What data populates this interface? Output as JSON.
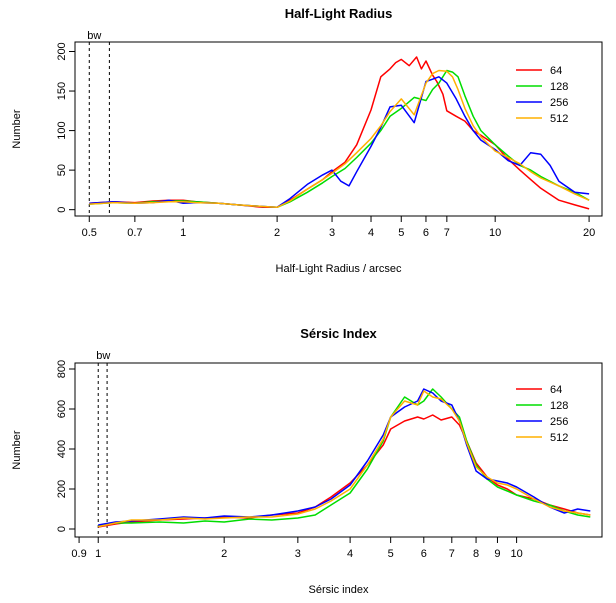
{
  "chart_data": [
    {
      "type": "line",
      "title": "Half-Light Radius",
      "xlabel": "Half-Light Radius / arcsec",
      "ylabel": "Number",
      "xscale": "log",
      "xlim": [
        0.45,
        22
      ],
      "ylim": [
        -8,
        212
      ],
      "xticks": [
        0.5,
        0.7,
        1,
        2,
        3,
        4,
        5,
        6,
        7,
        10,
        20
      ],
      "xtick_labels": [
        "0.5",
        "0.7",
        "1",
        "2",
        "3",
        "4",
        "5",
        "6",
        "7",
        "10",
        "20"
      ],
      "yticks": [
        0,
        50,
        100,
        150,
        200
      ],
      "ytick_labels": [
        "0",
        "50",
        "100",
        "150",
        "200"
      ],
      "bw_label": "bw",
      "bw_lines": [
        0.5,
        0.58
      ],
      "legend_position": "top-right",
      "legend": [
        {
          "label": "64",
          "color": "#ff0000"
        },
        {
          "label": "128",
          "color": "#00dd00"
        },
        {
          "label": "256",
          "color": "#0000ff"
        },
        {
          "label": "512",
          "color": "#ffb000"
        }
      ],
      "series": [
        {
          "name": "64",
          "color": "#ff0000",
          "x": [
            0.5,
            0.6,
            0.7,
            0.8,
            0.9,
            1.0,
            1.1,
            1.3,
            1.5,
            1.8,
            2.0,
            2.2,
            2.5,
            2.8,
            3.0,
            3.3,
            3.6,
            4.0,
            4.3,
            4.6,
            4.8,
            5.0,
            5.3,
            5.6,
            5.8,
            6.0,
            6.3,
            6.5,
            6.8,
            7.0,
            7.5,
            8.0,
            8.5,
            9.0,
            10,
            11,
            12,
            13,
            14,
            16,
            18,
            20
          ],
          "y": [
            8,
            10,
            9,
            11,
            12,
            12,
            10,
            8,
            6,
            3,
            3,
            12,
            26,
            38,
            48,
            60,
            82,
            126,
            168,
            178,
            186,
            190,
            182,
            193,
            178,
            188,
            170,
            162,
            146,
            125,
            118,
            112,
            100,
            94,
            82,
            64,
            50,
            38,
            27,
            12,
            6,
            1
          ]
        },
        {
          "name": "128",
          "color": "#00dd00",
          "x": [
            0.5,
            0.6,
            0.7,
            0.8,
            0.9,
            1.0,
            1.1,
            1.3,
            1.5,
            1.8,
            2.0,
            2.2,
            2.5,
            2.8,
            3.0,
            3.3,
            3.6,
            4.0,
            4.3,
            4.6,
            5.0,
            5.5,
            6.0,
            6.3,
            6.6,
            7.0,
            7.3,
            7.6,
            8.0,
            8.5,
            9.0,
            10,
            11,
            12,
            13,
            14,
            16,
            18,
            20
          ],
          "y": [
            7,
            9,
            8,
            10,
            11,
            11,
            10,
            8,
            6,
            4,
            3,
            10,
            22,
            34,
            42,
            52,
            66,
            84,
            100,
            118,
            128,
            142,
            138,
            152,
            160,
            176,
            174,
            168,
            144,
            118,
            100,
            82,
            68,
            56,
            50,
            42,
            30,
            22,
            12
          ]
        },
        {
          "name": "256",
          "color": "#0000ff",
          "x": [
            0.5,
            0.6,
            0.7,
            0.8,
            0.9,
            1.0,
            1.1,
            1.3,
            1.5,
            1.8,
            2.0,
            2.2,
            2.5,
            2.8,
            3.0,
            3.2,
            3.4,
            3.6,
            4.0,
            4.3,
            4.6,
            5.0,
            5.5,
            6.0,
            6.3,
            6.6,
            7.0,
            7.5,
            8.0,
            8.5,
            9.0,
            10,
            11,
            12,
            13,
            14,
            15,
            16,
            18,
            20
          ],
          "y": [
            8,
            10,
            8,
            9,
            12,
            8,
            9,
            8,
            6,
            4,
            3,
            14,
            32,
            44,
            50,
            36,
            30,
            48,
            80,
            104,
            130,
            132,
            110,
            162,
            165,
            168,
            160,
            140,
            118,
            100,
            88,
            76,
            62,
            56,
            72,
            70,
            56,
            36,
            22,
            20
          ]
        },
        {
          "name": "512",
          "color": "#ffb000",
          "x": [
            0.5,
            0.6,
            0.7,
            0.8,
            0.9,
            1.0,
            1.1,
            1.3,
            1.5,
            1.8,
            2.0,
            2.2,
            2.5,
            2.8,
            3.0,
            3.3,
            3.6,
            4.0,
            4.3,
            4.6,
            5.0,
            5.5,
            6.0,
            6.3,
            6.6,
            7.0,
            7.3,
            7.6,
            8.0,
            8.5,
            9.0,
            10,
            11,
            12,
            13,
            14,
            16,
            18,
            20
          ],
          "y": [
            7,
            9,
            8,
            9,
            10,
            10,
            9,
            8,
            6,
            4,
            3,
            11,
            26,
            38,
            46,
            58,
            72,
            90,
            106,
            124,
            140,
            120,
            160,
            172,
            176,
            175,
            168,
            152,
            128,
            106,
            92,
            74,
            66,
            58,
            48,
            40,
            30,
            20,
            12
          ]
        }
      ]
    },
    {
      "type": "line",
      "title": "Sérsic Index",
      "xlabel": "Sérsic index",
      "ylabel": "Number",
      "xscale": "log",
      "xlim": [
        0.88,
        16
      ],
      "ylim": [
        -40,
        830
      ],
      "xticks": [
        0.9,
        1,
        2,
        3,
        4,
        5,
        6,
        7,
        8,
        9,
        10
      ],
      "xtick_labels": [
        "0.9",
        "1",
        "2",
        "3",
        "4",
        "5",
        "6",
        "7",
        "8",
        "9",
        "10"
      ],
      "yticks": [
        0,
        200,
        400,
        600,
        800
      ],
      "ytick_labels": [
        "0",
        "200",
        "400",
        "600",
        "800"
      ],
      "bw_label": "bw",
      "bw_lines": [
        1.0,
        1.05
      ],
      "legend_position": "top-right",
      "legend": [
        {
          "label": "64",
          "color": "#ff0000"
        },
        {
          "label": "128",
          "color": "#00dd00"
        },
        {
          "label": "256",
          "color": "#0000ff"
        },
        {
          "label": "512",
          "color": "#ffb000"
        }
      ],
      "series": [
        {
          "name": "64",
          "color": "#ff0000",
          "x": [
            1.0,
            1.1,
            1.2,
            1.4,
            1.6,
            1.8,
            2.0,
            2.3,
            2.6,
            3.0,
            3.3,
            3.6,
            4.0,
            4.4,
            4.8,
            5.0,
            5.4,
            5.8,
            6.0,
            6.3,
            6.6,
            7.0,
            7.3,
            7.6,
            8.0,
            8.5,
            9.0,
            9.5,
            10,
            11,
            12,
            13,
            14,
            15
          ],
          "y": [
            10,
            25,
            35,
            45,
            50,
            55,
            60,
            55,
            70,
            80,
            110,
            160,
            230,
            320,
            420,
            500,
            540,
            560,
            550,
            570,
            545,
            560,
            520,
            440,
            330,
            260,
            220,
            200,
            170,
            150,
            120,
            100,
            80,
            70
          ]
        },
        {
          "name": "128",
          "color": "#00dd00",
          "x": [
            1.0,
            1.1,
            1.2,
            1.4,
            1.6,
            1.8,
            2.0,
            2.3,
            2.6,
            3.0,
            3.3,
            3.6,
            4.0,
            4.4,
            4.8,
            5.0,
            5.4,
            5.8,
            6.0,
            6.3,
            6.6,
            7.0,
            7.3,
            7.6,
            8.0,
            8.5,
            9.0,
            9.5,
            10,
            11,
            12,
            13,
            14,
            15
          ],
          "y": [
            15,
            30,
            30,
            35,
            30,
            40,
            35,
            50,
            45,
            55,
            70,
            120,
            180,
            300,
            440,
            560,
            660,
            620,
            640,
            700,
            660,
            600,
            560,
            440,
            320,
            250,
            210,
            190,
            170,
            140,
            120,
            90,
            70,
            60
          ]
        },
        {
          "name": "256",
          "color": "#0000ff",
          "x": [
            1.0,
            1.1,
            1.2,
            1.4,
            1.6,
            1.8,
            2.0,
            2.3,
            2.6,
            3.0,
            3.3,
            3.6,
            4.0,
            4.4,
            4.8,
            5.0,
            5.4,
            5.8,
            6.0,
            6.3,
            6.6,
            7.0,
            7.3,
            7.6,
            8.0,
            8.5,
            9.0,
            9.5,
            10,
            11,
            12,
            13,
            14,
            15
          ],
          "y": [
            20,
            35,
            40,
            50,
            60,
            55,
            65,
            60,
            70,
            90,
            110,
            150,
            220,
            340,
            470,
            560,
            610,
            640,
            700,
            680,
            640,
            620,
            540,
            420,
            290,
            250,
            240,
            230,
            210,
            160,
            110,
            80,
            100,
            90
          ]
        },
        {
          "name": "512",
          "color": "#ffb000",
          "x": [
            1.0,
            1.1,
            1.2,
            1.4,
            1.6,
            1.8,
            2.0,
            2.3,
            2.6,
            3.0,
            3.3,
            3.6,
            4.0,
            4.4,
            4.8,
            5.0,
            5.4,
            5.8,
            6.0,
            6.3,
            6.6,
            7.0,
            7.3,
            7.6,
            8.0,
            8.5,
            9.0,
            9.5,
            10,
            11,
            12,
            13,
            14,
            15
          ],
          "y": [
            12,
            30,
            45,
            45,
            55,
            50,
            55,
            60,
            60,
            75,
            100,
            140,
            200,
            320,
            450,
            560,
            640,
            620,
            690,
            660,
            650,
            600,
            540,
            430,
            310,
            260,
            230,
            220,
            200,
            150,
            110,
            90,
            80,
            70
          ]
        }
      ]
    }
  ]
}
